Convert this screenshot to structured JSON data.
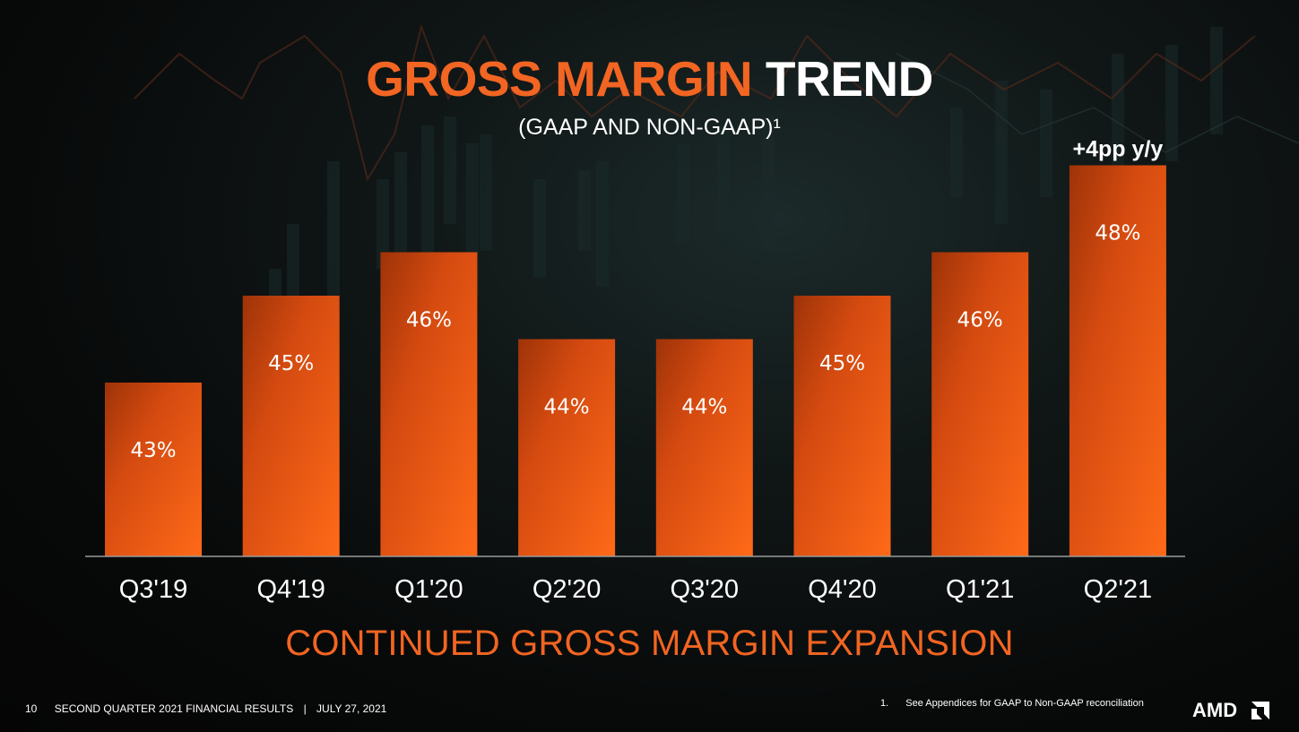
{
  "title": {
    "part1": "GROSS MARGIN",
    "part2": "TREND"
  },
  "subtitle": "(GAAP AND NON-GAAP)¹",
  "tagline": "CONTINUED GROSS MARGIN EXPANSION",
  "footer": {
    "page_number": "10",
    "doc_title": "SECOND QUARTER 2021 FINANCIAL RESULTS",
    "separator": "|",
    "date": "JULY 27, 2021"
  },
  "footnote": {
    "number": "1.",
    "text": "See Appendices for GAAP to Non-GAAP reconciliation"
  },
  "logo": "AMD",
  "colors": {
    "accent": "#f26522",
    "bar_dark": "#a8380a",
    "bar_light": "#ff6a18",
    "text": "#ffffff"
  },
  "chart_data": {
    "type": "bar",
    "categories": [
      "Q3'19",
      "Q4'19",
      "Q1'20",
      "Q2'20",
      "Q3'20",
      "Q4'20",
      "Q1'21",
      "Q2'21"
    ],
    "values": [
      43,
      45,
      46,
      44,
      44,
      45,
      46,
      48
    ],
    "data_labels": [
      "43%",
      "45%",
      "46%",
      "44%",
      "44%",
      "45%",
      "46%",
      "48%"
    ],
    "annotations": [
      {
        "category": "Q2'21",
        "text": "+4pp y/y"
      }
    ],
    "ylim": [
      39,
      49
    ],
    "grid": false
  }
}
